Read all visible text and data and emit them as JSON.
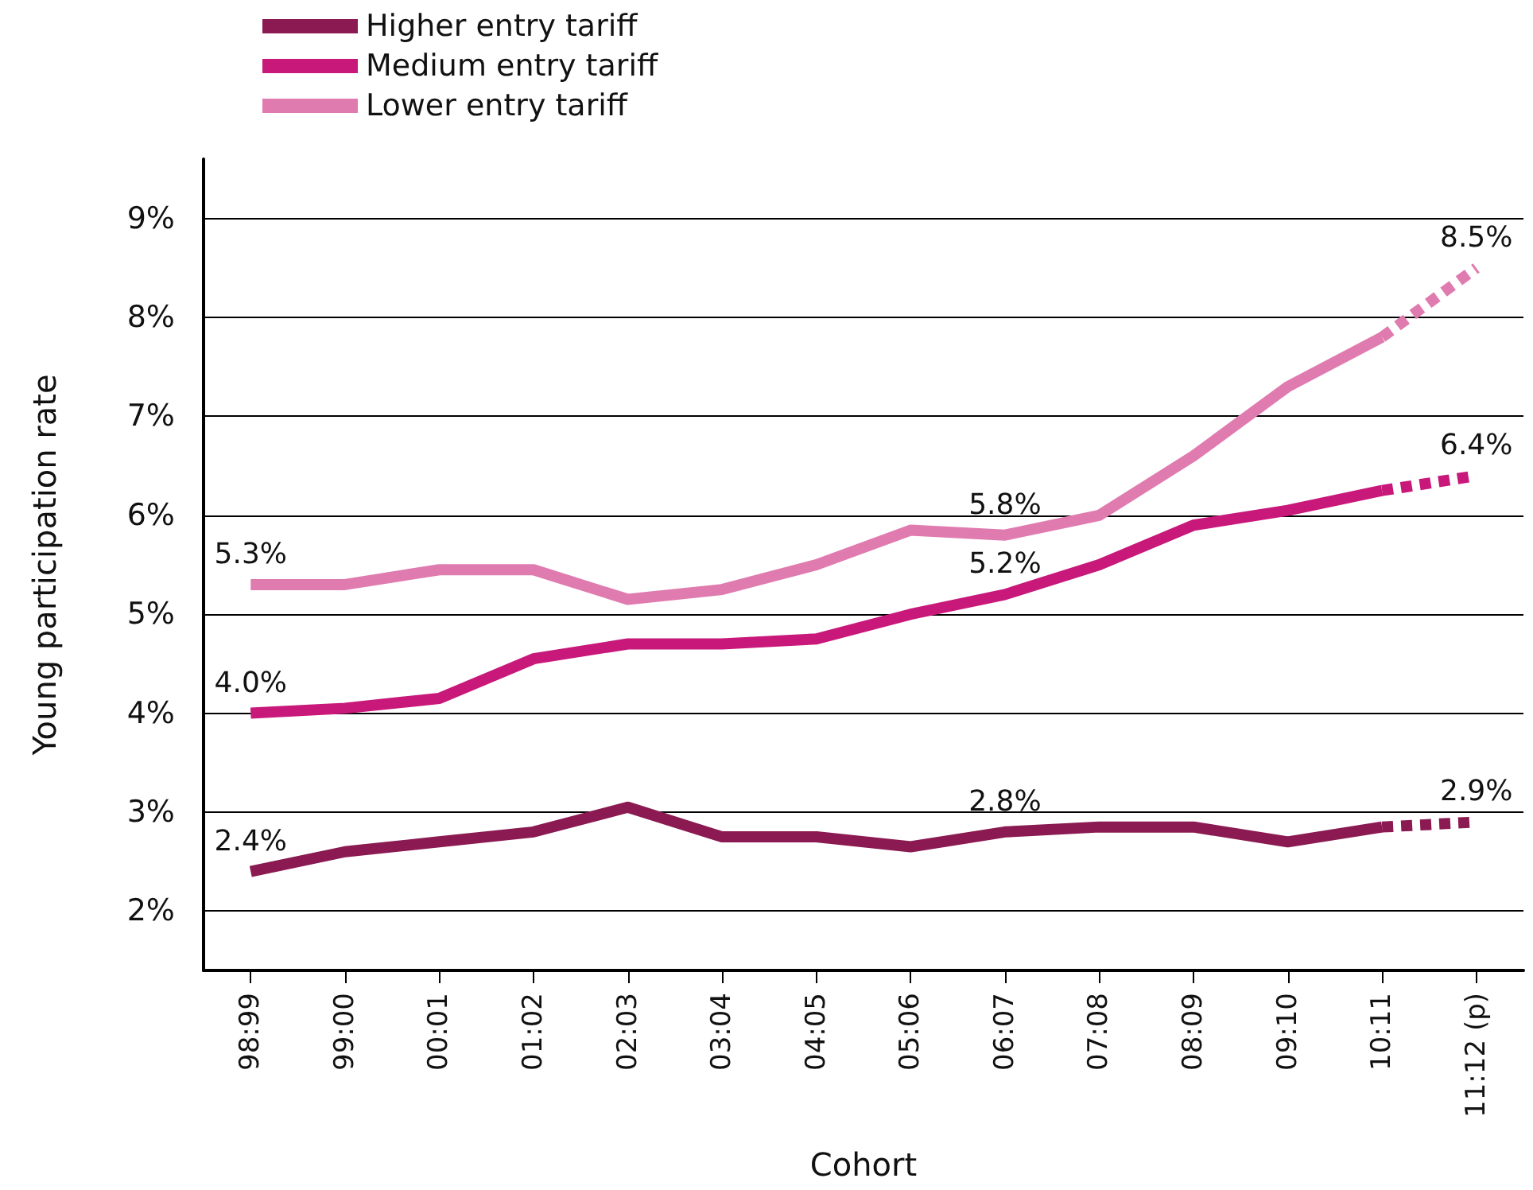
{
  "chart_data": {
    "type": "line",
    "xlabel": "Cohort",
    "ylabel": "Young participation rate",
    "categories": [
      "98:99",
      "99:00",
      "00:01",
      "01:02",
      "02:03",
      "03:04",
      "04:05",
      "05:06",
      "06:07",
      "07:08",
      "08:09",
      "09:10",
      "10:11",
      "11:12 (p)"
    ],
    "series": [
      {
        "name": "Higher entry tariff",
        "color": "#8b1a52",
        "values": [
          2.4,
          2.6,
          2.7,
          2.8,
          3.05,
          2.75,
          2.75,
          2.65,
          2.8,
          2.85,
          2.85,
          2.7,
          2.85,
          null
        ],
        "value_labels": [
          "2.4%",
          null,
          null,
          null,
          null,
          null,
          null,
          null,
          "2.8%",
          null,
          null,
          null,
          null,
          null
        ]
      },
      {
        "name": "Medium entry tariff",
        "color": "#c8187a",
        "values": [
          4.0,
          4.05,
          4.15,
          4.55,
          4.7,
          4.7,
          4.75,
          5.0,
          5.2,
          5.5,
          5.9,
          6.05,
          6.25,
          null
        ],
        "value_labels": [
          "4.0%",
          null,
          null,
          null,
          null,
          null,
          null,
          null,
          "5.2%",
          null,
          null,
          null,
          null,
          null
        ]
      },
      {
        "name": "Lower entry tariff",
        "color": "#e07bb0",
        "values": [
          5.3,
          5.3,
          5.45,
          5.45,
          5.15,
          5.25,
          5.5,
          5.85,
          5.8,
          6.0,
          6.6,
          7.3,
          7.8,
          null
        ],
        "value_labels": [
          "5.3%",
          null,
          null,
          null,
          null,
          null,
          null,
          null,
          "5.8%",
          null,
          null,
          null,
          null,
          null
        ]
      },
      {
        "color": "#8b1a52",
        "line_style": "dashed",
        "values": [
          null,
          null,
          null,
          null,
          null,
          null,
          null,
          null,
          null,
          null,
          null,
          null,
          2.85,
          2.9
        ],
        "value_labels": [
          null,
          null,
          null,
          null,
          null,
          null,
          null,
          null,
          null,
          null,
          null,
          null,
          null,
          "2.9%"
        ]
      },
      {
        "color": "#c8187a",
        "line_style": "dashed",
        "values": [
          null,
          null,
          null,
          null,
          null,
          null,
          null,
          null,
          null,
          null,
          null,
          null,
          6.25,
          6.4
        ],
        "value_labels": [
          null,
          null,
          null,
          null,
          null,
          null,
          null,
          null,
          null,
          null,
          null,
          null,
          null,
          "6.4%"
        ]
      },
      {
        "color": "#e07bb0",
        "line_style": "dashed",
        "values": [
          null,
          null,
          null,
          null,
          null,
          null,
          null,
          null,
          null,
          null,
          null,
          null,
          7.8,
          8.5
        ],
        "value_labels": [
          null,
          null,
          null,
          null,
          null,
          null,
          null,
          null,
          null,
          null,
          null,
          null,
          null,
          "8.5%"
        ]
      }
    ],
    "ylim": [
      1.4,
      9.6
    ],
    "yticks": [
      {
        "value": 2,
        "label": "2%"
      },
      {
        "value": 3,
        "label": "3%"
      },
      {
        "value": 4,
        "label": "4%"
      },
      {
        "value": 5,
        "label": "5%"
      },
      {
        "value": 6,
        "label": "6%"
      },
      {
        "value": 7,
        "label": "7%"
      },
      {
        "value": 8,
        "label": "8%"
      },
      {
        "value": 9,
        "label": "9%"
      }
    ],
    "grid": "y",
    "legend": "top left",
    "marker": "none",
    "line_style": "solid"
  }
}
